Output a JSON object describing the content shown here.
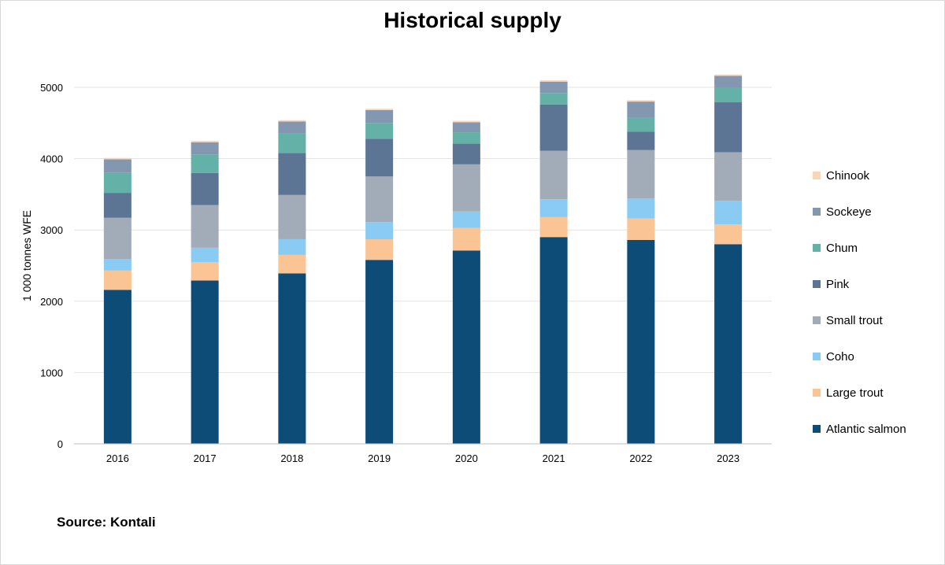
{
  "chart_data": {
    "type": "bar",
    "stacked": true,
    "title": "Historical supply",
    "xlabel": "",
    "ylabel": "1 000 tonnes WFE",
    "ylim": [
      0,
      5000
    ],
    "yticks": [
      0,
      1000,
      2000,
      3000,
      4000,
      5000
    ],
    "grid": true,
    "legend_position": "right",
    "categories": [
      "2016",
      "2017",
      "2018",
      "2019",
      "2020",
      "2021",
      "2022",
      "2023"
    ],
    "series": [
      {
        "name": "Atlantic salmon",
        "color": "#0e4c78",
        "values": [
          2160,
          2290,
          2390,
          2580,
          2710,
          2900,
          2860,
          2800
        ]
      },
      {
        "name": "Large trout",
        "color": "#fbc495",
        "values": [
          270,
          260,
          260,
          290,
          320,
          280,
          300,
          280
        ]
      },
      {
        "name": "Coho",
        "color": "#89cbf2",
        "values": [
          160,
          200,
          220,
          240,
          230,
          250,
          280,
          330
        ]
      },
      {
        "name": "Small trout",
        "color": "#a2acb9",
        "values": [
          580,
          600,
          620,
          640,
          660,
          680,
          680,
          680
        ]
      },
      {
        "name": "Pink",
        "color": "#5d7594",
        "values": [
          350,
          450,
          590,
          530,
          290,
          650,
          260,
          700
        ]
      },
      {
        "name": "Chum",
        "color": "#64b1a8",
        "values": [
          280,
          260,
          270,
          220,
          160,
          160,
          200,
          210
        ]
      },
      {
        "name": "Sockeye",
        "color": "#8497b1",
        "values": [
          190,
          170,
          170,
          180,
          140,
          160,
          220,
          160
        ]
      },
      {
        "name": "Chinook",
        "color": "#fcd5b5",
        "values": [
          20,
          20,
          20,
          20,
          20,
          20,
          20,
          20
        ]
      }
    ]
  },
  "source": "Source: Kontali"
}
